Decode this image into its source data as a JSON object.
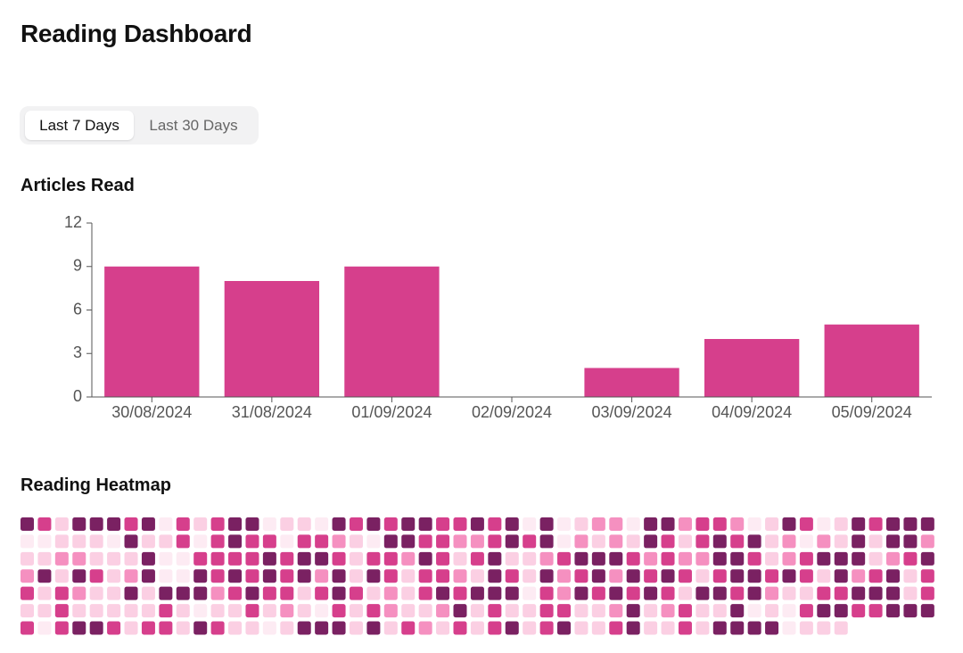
{
  "header": {
    "title": "Reading Dashboard"
  },
  "tabs": [
    "Last 7 Days",
    "Last 30 Days"
  ],
  "active_tab": 0,
  "chart_data": {
    "type": "bar",
    "title": "Articles Read",
    "categories": [
      "30/08/2024",
      "31/08/2024",
      "01/09/2024",
      "02/09/2024",
      "03/09/2024",
      "04/09/2024",
      "05/09/2024"
    ],
    "values": [
      9,
      8,
      9,
      0,
      2,
      4,
      5
    ],
    "color": "#d63f8c",
    "ylim": [
      0,
      12
    ],
    "yticks": [
      0,
      3,
      6,
      9,
      12
    ],
    "grid": false
  },
  "heatmap": {
    "title": "Reading Heatmap",
    "colors": [
      "#fdebf3",
      "#fbcfe3",
      "#f590c0",
      "#d63f8c",
      "#7a2162"
    ],
    "rows": [
      [
        4,
        3,
        1,
        4,
        4,
        4,
        3,
        4,
        0,
        3,
        1,
        3,
        4,
        4,
        0,
        1,
        1,
        0,
        4,
        3,
        4,
        3,
        4,
        4,
        3,
        3,
        4,
        3,
        4,
        0,
        4,
        0,
        1,
        2,
        2,
        0,
        4,
        4,
        2,
        3,
        3,
        2,
        0,
        1,
        4,
        3,
        0,
        1,
        4,
        3,
        4,
        4,
        4
      ],
      [
        0,
        0,
        1,
        1,
        1,
        0,
        4,
        1,
        1,
        3,
        0,
        3,
        4,
        3,
        3,
        0,
        3,
        3,
        2,
        1,
        0,
        4,
        4,
        3,
        3,
        2,
        2,
        3,
        4,
        3,
        4,
        0,
        2,
        1,
        2,
        1,
        4,
        3,
        1,
        3,
        4,
        3,
        4,
        1,
        2,
        0,
        2,
        1,
        4,
        1,
        4,
        4,
        2
      ],
      [
        1,
        1,
        2,
        2,
        1,
        1,
        1,
        4,
        0,
        0,
        3,
        3,
        3,
        3,
        4,
        3,
        4,
        4,
        3,
        1,
        3,
        3,
        2,
        4,
        3,
        1,
        3,
        4,
        1,
        1,
        2,
        3,
        4,
        4,
        4,
        3,
        2,
        3,
        2,
        2,
        4,
        4,
        3,
        1,
        2,
        3,
        4,
        4,
        4,
        1,
        2,
        3,
        4
      ],
      [
        2,
        4,
        1,
        4,
        3,
        1,
        2,
        4,
        0,
        0,
        4,
        3,
        4,
        3,
        4,
        3,
        4,
        2,
        4,
        1,
        4,
        3,
        1,
        3,
        3,
        2,
        1,
        4,
        3,
        1,
        4,
        2,
        3,
        4,
        2,
        4,
        3,
        4,
        3,
        1,
        3,
        4,
        4,
        3,
        4,
        3,
        1,
        4,
        2,
        3,
        4,
        1,
        3
      ],
      [
        3,
        1,
        3,
        2,
        1,
        1,
        4,
        1,
        4,
        4,
        4,
        2,
        3,
        4,
        3,
        3,
        1,
        3,
        4,
        3,
        1,
        2,
        1,
        3,
        4,
        3,
        4,
        4,
        4,
        0,
        3,
        2,
        4,
        3,
        4,
        3,
        4,
        3,
        1,
        4,
        4,
        3,
        4,
        2,
        1,
        1,
        3,
        3,
        4,
        4,
        4,
        1,
        3
      ],
      [
        1,
        1,
        3,
        1,
        1,
        1,
        1,
        1,
        3,
        1,
        0,
        1,
        1,
        3,
        1,
        2,
        1,
        0,
        3,
        1,
        3,
        2,
        1,
        1,
        2,
        4,
        1,
        3,
        1,
        1,
        3,
        3,
        1,
        1,
        2,
        4,
        1,
        2,
        3,
        1,
        1,
        4,
        0,
        1,
        0,
        3,
        4,
        4,
        3,
        3,
        4,
        4,
        4
      ],
      [
        3,
        0,
        3,
        4,
        4,
        3,
        1,
        3,
        3,
        1,
        4,
        3,
        1,
        1,
        0,
        1,
        4,
        4,
        4,
        1,
        4,
        1,
        3,
        2,
        1,
        3,
        1,
        3,
        4,
        1,
        3,
        4,
        1,
        1,
        3,
        4,
        1,
        1,
        3,
        1,
        4,
        4,
        4,
        4,
        0,
        1,
        1,
        1
      ]
    ]
  }
}
